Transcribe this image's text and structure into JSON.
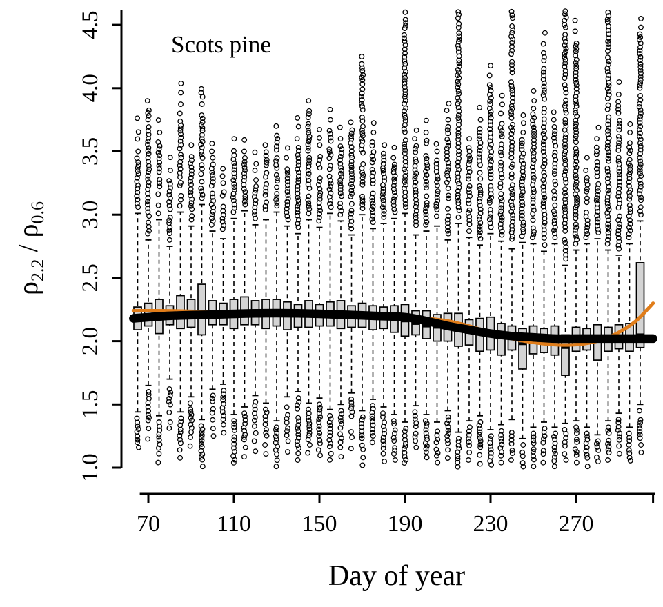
{
  "title": "Scots pine",
  "xlabel": "Day of year",
  "ylabel": "ρ2.2 / ρ0.6",
  "ylabel_parts": {
    "rho1": "ρ",
    "sub1": "2.2",
    "separator": " / ",
    "rho2": "ρ",
    "sub2": "0.6"
  },
  "chart_data": {
    "type": "boxplot",
    "title": "Scots pine",
    "xlabel": "Day of year",
    "ylabel": "rho_2.2 / rho_0.6",
    "x_ticks": [
      70,
      110,
      150,
      190,
      230,
      270
    ],
    "x_end_tick": 306,
    "y_ticks": [
      1.0,
      1.5,
      2.0,
      2.5,
      3.0,
      3.5,
      4.0,
      4.5
    ],
    "xlim": [
      63,
      307
    ],
    "ylim": [
      1.0,
      4.65
    ],
    "grid": false,
    "legend": false,
    "days": [
      65,
      70,
      75,
      80,
      85,
      90,
      95,
      100,
      105,
      110,
      115,
      120,
      125,
      130,
      135,
      140,
      145,
      150,
      155,
      160,
      165,
      170,
      175,
      180,
      185,
      190,
      195,
      200,
      205,
      210,
      215,
      220,
      225,
      230,
      235,
      240,
      245,
      250,
      255,
      260,
      265,
      270,
      275,
      280,
      285,
      290,
      295,
      300
    ],
    "median": [
      2.19,
      2.2,
      2.21,
      2.2,
      2.22,
      2.21,
      2.23,
      2.22,
      2.21,
      2.22,
      2.23,
      2.22,
      2.21,
      2.22,
      2.21,
      2.2,
      2.21,
      2.2,
      2.21,
      2.2,
      2.19,
      2.2,
      2.19,
      2.18,
      2.17,
      2.16,
      2.14,
      2.12,
      2.11,
      2.1,
      2.08,
      2.07,
      2.06,
      2.05,
      2.04,
      2.03,
      1.98,
      2.02,
      2.01,
      2.02,
      1.95,
      2.02,
      2.02,
      2.01,
      2.02,
      2.03,
      2.02,
      2.05
    ],
    "q1": [
      2.09,
      2.12,
      2.06,
      2.13,
      2.1,
      2.11,
      2.05,
      2.13,
      2.13,
      2.1,
      2.13,
      2.13,
      2.1,
      2.12,
      2.09,
      2.11,
      2.11,
      2.12,
      2.12,
      2.1,
      2.11,
      2.11,
      2.09,
      2.1,
      2.07,
      2.04,
      2.05,
      2.02,
      2.0,
      2.0,
      1.96,
      1.97,
      1.92,
      1.93,
      1.89,
      1.93,
      1.78,
      1.9,
      1.91,
      1.89,
      1.73,
      1.92,
      1.93,
      1.85,
      1.92,
      1.94,
      1.92,
      1.95
    ],
    "q3": [
      2.27,
      2.3,
      2.33,
      2.28,
      2.36,
      2.33,
      2.45,
      2.32,
      2.3,
      2.33,
      2.35,
      2.32,
      2.33,
      2.33,
      2.31,
      2.29,
      2.32,
      2.29,
      2.31,
      2.32,
      2.28,
      2.3,
      2.28,
      2.27,
      2.28,
      2.29,
      2.24,
      2.24,
      2.21,
      2.22,
      2.22,
      2.17,
      2.18,
      2.19,
      2.14,
      2.12,
      2.1,
      2.12,
      2.1,
      2.12,
      2.05,
      2.11,
      2.1,
      2.13,
      2.11,
      2.13,
      2.14,
      2.62
    ],
    "whisker_high": [
      3.01,
      2.8,
      2.96,
      2.75,
      3.02,
      2.91,
      3.08,
      2.87,
      2.81,
      2.97,
      3.03,
      2.92,
      2.96,
      3.02,
      2.91,
      2.85,
      2.96,
      2.9,
      3.01,
      2.95,
      2.84,
      3.0,
      2.89,
      2.93,
      2.97,
      3.01,
      2.84,
      2.87,
      2.91,
      2.8,
      2.93,
      2.82,
      2.76,
      2.85,
      2.79,
      2.73,
      2.78,
      2.77,
      2.71,
      2.77,
      2.6,
      2.72,
      2.77,
      2.81,
      2.72,
      2.68,
      2.77,
      2.95
    ],
    "whisker_low": [
      1.44,
      1.65,
      1.41,
      1.7,
      1.44,
      1.56,
      1.38,
      1.62,
      1.66,
      1.42,
      1.48,
      1.57,
      1.51,
      1.37,
      1.56,
      1.6,
      1.51,
      1.55,
      1.46,
      1.5,
      1.59,
      1.45,
      1.54,
      1.48,
      1.42,
      1.36,
      1.49,
      1.42,
      1.36,
      1.45,
      1.28,
      1.37,
      1.41,
      1.3,
      1.34,
      1.38,
      1.23,
      1.32,
      1.36,
      1.32,
      1.35,
      1.37,
      1.32,
      1.26,
      1.37,
      1.43,
      1.32,
      1.5
    ],
    "outlier_high_dense": [
      3.45,
      3.85,
      3.6,
      3.3,
      3.75,
      3.5,
      4.05,
      3.4,
      3.2,
      3.55,
      3.45,
      3.3,
      3.5,
      3.65,
      3.4,
      3.55,
      3.85,
      3.5,
      3.7,
      3.55,
      3.68,
      4.2,
      3.6,
      3.5,
      3.4,
      4.55,
      3.55,
      3.6,
      3.45,
      3.7,
      4.62,
      3.55,
      3.7,
      4.05,
      3.75,
      4.62,
      3.6,
      3.85,
      4.3,
      3.7,
      4.62,
      4.4,
      3.3,
      3.55,
      4.62,
      3.9,
      3.6,
      4.5
    ],
    "outlier_high_max": [
      3.8,
      3.95,
      3.75,
      3.5,
      4.05,
      3.6,
      4.1,
      3.6,
      3.45,
      3.7,
      3.6,
      3.55,
      3.6,
      3.8,
      3.55,
      3.8,
      3.95,
      3.7,
      3.9,
      3.7,
      3.8,
      4.3,
      3.75,
      3.6,
      3.55,
      4.62,
      3.7,
      3.75,
      3.6,
      3.9,
      4.62,
      3.7,
      3.9,
      4.2,
      3.95,
      4.62,
      3.8,
      4.0,
      4.45,
      3.85,
      4.62,
      4.55,
      3.5,
      3.7,
      4.62,
      4.1,
      3.8,
      4.6
    ],
    "outlier_low_dense": [
      1.2,
      1.35,
      1.15,
      1.4,
      1.18,
      1.28,
      1.05,
      1.35,
      1.38,
      1.02,
      1.2,
      1.25,
      1.22,
      1.05,
      1.25,
      1.1,
      1.22,
      1.18,
      1.15,
      1.2,
      1.28,
      1.12,
      1.24,
      1.15,
      1.1,
      1.02,
      1.2,
      1.12,
      1.08,
      1.18,
      1.0,
      1.1,
      1.14,
      1.02,
      1.08,
      1.1,
      1.0,
      1.05,
      1.08,
      1.05,
      1.1,
      1.08,
      1.05,
      1.0,
      1.1,
      1.15,
      1.04,
      1.22
    ],
    "outlier_low_min": [
      1.08,
      1.22,
      1.02,
      1.28,
      1.05,
      1.15,
      1.0,
      1.22,
      1.25,
      1.0,
      1.08,
      1.12,
      1.1,
      1.0,
      1.12,
      1.0,
      1.1,
      1.05,
      1.02,
      1.08,
      1.15,
      1.0,
      1.12,
      1.02,
      1.0,
      1.0,
      1.08,
      1.0,
      1.0,
      1.05,
      1.0,
      1.0,
      1.02,
      1.0,
      1.0,
      1.0,
      1.0,
      1.0,
      1.0,
      1.0,
      1.0,
      1.0,
      1.0,
      1.0,
      1.0,
      1.05,
      1.0,
      1.1
    ],
    "smooth_black": {
      "x": [
        63,
        80,
        100,
        120,
        140,
        160,
        175,
        190,
        200,
        210,
        220,
        230,
        240,
        250,
        260,
        270,
        285,
        306
      ],
      "y": [
        2.18,
        2.2,
        2.21,
        2.22,
        2.22,
        2.21,
        2.2,
        2.19,
        2.16,
        2.12,
        2.09,
        2.06,
        2.04,
        2.03,
        2.02,
        2.02,
        2.02,
        2.02
      ]
    },
    "smooth_orange": {
      "x": [
        63,
        80,
        100,
        120,
        140,
        160,
        175,
        190,
        200,
        210,
        220,
        230,
        240,
        250,
        258,
        266,
        274,
        282,
        290,
        298,
        306
      ],
      "y": [
        2.24,
        2.24,
        2.23,
        2.22,
        2.22,
        2.21,
        2.21,
        2.2,
        2.18,
        2.16,
        2.12,
        2.07,
        2.02,
        1.99,
        1.975,
        1.97,
        1.98,
        2.01,
        2.07,
        2.16,
        2.3
      ]
    },
    "colors": {
      "box_fill": "#d4d4d4",
      "median": "#000000",
      "smooth_black": "#000000",
      "smooth_orange": "#e07d1a",
      "background": "#ffffff"
    }
  }
}
